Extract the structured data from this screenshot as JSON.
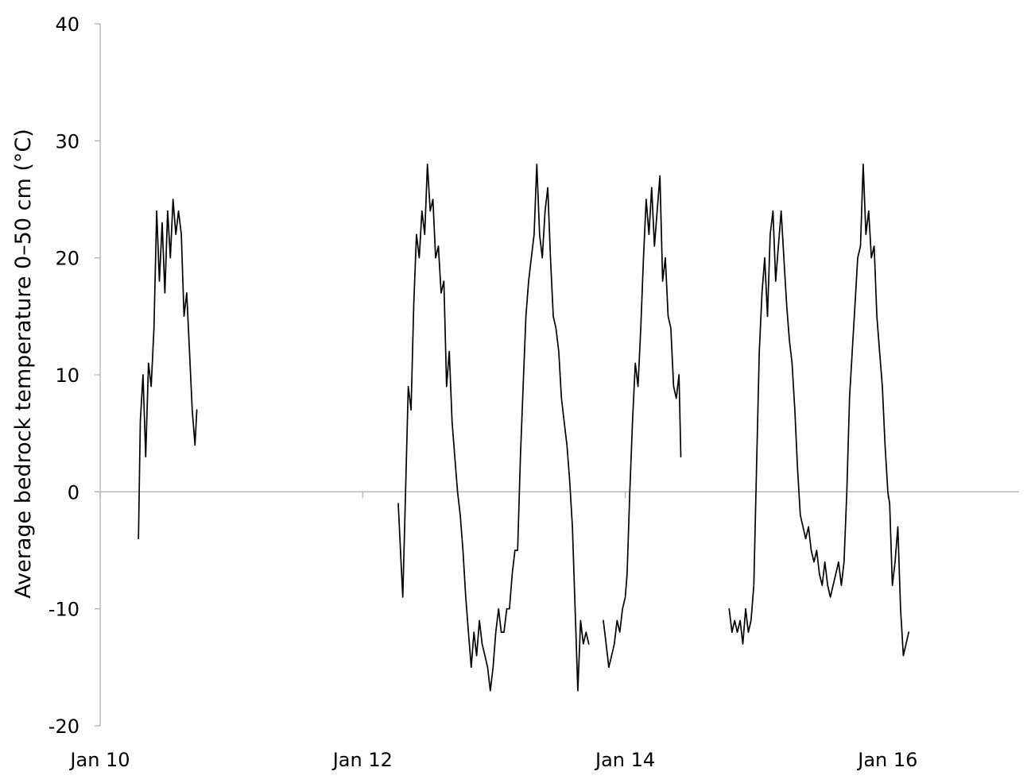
{
  "chart_data": {
    "type": "line",
    "title": "",
    "xlabel": "",
    "ylabel": "Average bedrock temperature 0–50 cm (°C)",
    "ylim": [
      -20,
      40
    ],
    "xlim": [
      "Jan 10",
      "Jan 17"
    ],
    "y_ticks": [
      "-20",
      "-10",
      "0",
      "10",
      "20",
      "30",
      "40"
    ],
    "x_ticks": [
      "Jan 10",
      "Jan 12",
      "Jan 14",
      "Jan 16"
    ],
    "grid": false,
    "legend": "none",
    "line_color": "#000000",
    "series": [
      {
        "segments": [
          [
            [
              "Jan 10 07:00",
              -4
            ],
            [
              "Jan 10 07:20",
              6
            ],
            [
              "Jan 10 07:50",
              10
            ],
            [
              "Jan 10 08:20",
              3
            ],
            [
              "Jan 10 08:50",
              11
            ],
            [
              "Jan 10 09:20",
              9
            ],
            [
              "Jan 10 09:50",
              14
            ],
            [
              "Jan 10 10:20",
              24
            ],
            [
              "Jan 10 10:50",
              18
            ],
            [
              "Jan 10 11:20",
              23
            ],
            [
              "Jan 10 11:50",
              17
            ],
            [
              "Jan 10 12:20",
              24
            ],
            [
              "Jan 10 12:50",
              20
            ],
            [
              "Jan 10 13:20",
              25
            ],
            [
              "Jan 10 13:50",
              22
            ],
            [
              "Jan 10 14:20",
              24
            ],
            [
              "Jan 10 14:50",
              22
            ],
            [
              "Jan 10 15:20",
              15
            ],
            [
              "Jan 10 15:50",
              17
            ],
            [
              "Jan 10 16:20",
              12
            ],
            [
              "Jan 10 16:50",
              7
            ],
            [
              "Jan 10 17:20",
              4
            ],
            [
              "Jan 10 17:40",
              7
            ]
          ],
          [
            [
              "Jan 12 06:30",
              -1
            ],
            [
              "Jan 12 07:00",
              -6
            ],
            [
              "Jan 12 07:20",
              -9
            ],
            [
              "Jan 12 07:50",
              0
            ],
            [
              "Jan 12 08:20",
              9
            ],
            [
              "Jan 12 08:50",
              7
            ],
            [
              "Jan 12 09:20",
              16
            ],
            [
              "Jan 12 09:50",
              22
            ],
            [
              "Jan 12 10:20",
              20
            ],
            [
              "Jan 12 10:50",
              24
            ],
            [
              "Jan 12 11:20",
              22
            ],
            [
              "Jan 12 11:50",
              28
            ],
            [
              "Jan 12 12:20",
              24
            ],
            [
              "Jan 12 12:50",
              25
            ],
            [
              "Jan 12 13:20",
              20
            ],
            [
              "Jan 12 13:50",
              21
            ],
            [
              "Jan 12 14:20",
              17
            ],
            [
              "Jan 12 14:50",
              18
            ],
            [
              "Jan 12 15:20",
              9
            ],
            [
              "Jan 12 15:50",
              12
            ],
            [
              "Jan 12 16:20",
              6
            ],
            [
              "Jan 12 16:50",
              3
            ],
            [
              "Jan 12 17:20",
              0
            ],
            [
              "Jan 12 17:50",
              -2
            ],
            [
              "Jan 12 18:20",
              -5
            ],
            [
              "Jan 12 18:50",
              -9
            ],
            [
              "Jan 12 19:20",
              -12
            ],
            [
              "Jan 12 19:50",
              -15
            ],
            [
              "Jan 12 20:20",
              -12
            ],
            [
              "Jan 12 20:50",
              -14
            ],
            [
              "Jan 12 21:20",
              -11
            ],
            [
              "Jan 12 21:50",
              -13
            ],
            [
              "Jan 12 22:20",
              -14
            ],
            [
              "Jan 12 22:50",
              -15
            ],
            [
              "Jan 12 23:20",
              -17
            ],
            [
              "Jan 12 23:50",
              -15
            ],
            [
              "Jan 13 00:20",
              -12
            ],
            [
              "Jan 13 00:50",
              -10
            ],
            [
              "Jan 13 01:20",
              -12
            ],
            [
              "Jan 13 01:50",
              -12
            ],
            [
              "Jan 13 02:20",
              -10
            ],
            [
              "Jan 13 02:50",
              -10
            ],
            [
              "Jan 13 03:20",
              -7
            ],
            [
              "Jan 13 03:50",
              -5
            ],
            [
              "Jan 13 04:20",
              -5
            ],
            [
              "Jan 13 04:50",
              3
            ],
            [
              "Jan 13 05:20",
              9
            ],
            [
              "Jan 13 05:50",
              15
            ],
            [
              "Jan 13 06:20",
              18
            ],
            [
              "Jan 13 06:50",
              20
            ],
            [
              "Jan 13 07:20",
              22
            ],
            [
              "Jan 13 07:50",
              28
            ],
            [
              "Jan 13 08:20",
              22
            ],
            [
              "Jan 13 08:50",
              20
            ],
            [
              "Jan 13 09:20",
              24
            ],
            [
              "Jan 13 09:50",
              26
            ],
            [
              "Jan 13 10:20",
              20
            ],
            [
              "Jan 13 10:50",
              15
            ],
            [
              "Jan 13 11:20",
              14
            ],
            [
              "Jan 13 11:50",
              12
            ],
            [
              "Jan 13 12:20",
              8
            ],
            [
              "Jan 13 12:50",
              6
            ],
            [
              "Jan 13 13:20",
              4
            ],
            [
              "Jan 13 13:50",
              1
            ],
            [
              "Jan 13 14:20",
              -3
            ],
            [
              "Jan 13 14:50",
              -10
            ],
            [
              "Jan 13 15:20",
              -17
            ],
            [
              "Jan 13 15:50",
              -11
            ],
            [
              "Jan 13 16:20",
              -13
            ],
            [
              "Jan 13 16:50",
              -12
            ],
            [
              "Jan 13 17:20",
              -13
            ]
          ],
          [
            [
              "Jan 13 20:00",
              -11
            ],
            [
              "Jan 13 20:30",
              -13
            ],
            [
              "Jan 13 21:00",
              -15
            ],
            [
              "Jan 13 21:30",
              -14
            ],
            [
              "Jan 13 22:00",
              -13
            ],
            [
              "Jan 13 22:30",
              -11
            ],
            [
              "Jan 13 23:00",
              -12
            ],
            [
              "Jan 13 23:30",
              -10
            ],
            [
              "Jan 14 00:00",
              -9
            ],
            [
              "Jan 14 00:20",
              -7
            ],
            [
              "Jan 14 00:50",
              0
            ],
            [
              "Jan 14 01:20",
              6
            ],
            [
              "Jan 14 01:50",
              11
            ],
            [
              "Jan 14 02:20",
              9
            ],
            [
              "Jan 14 02:50",
              14
            ],
            [
              "Jan 14 03:20",
              20
            ],
            [
              "Jan 14 03:50",
              25
            ],
            [
              "Jan 14 04:20",
              22
            ],
            [
              "Jan 14 04:50",
              26
            ],
            [
              "Jan 14 05:20",
              21
            ],
            [
              "Jan 14 05:50",
              24
            ],
            [
              "Jan 14 06:20",
              27
            ],
            [
              "Jan 14 06:50",
              18
            ],
            [
              "Jan 14 07:20",
              20
            ],
            [
              "Jan 14 07:50",
              15
            ],
            [
              "Jan 14 08:20",
              14
            ],
            [
              "Jan 14 08:50",
              9
            ],
            [
              "Jan 14 09:20",
              8
            ],
            [
              "Jan 14 09:50",
              10
            ],
            [
              "Jan 14 10:10",
              3
            ]
          ],
          [
            [
              "Jan 14 19:00",
              -10
            ],
            [
              "Jan 14 19:30",
              -12
            ],
            [
              "Jan 14 20:00",
              -11
            ],
            [
              "Jan 14 20:30",
              -12
            ],
            [
              "Jan 14 21:00",
              -11
            ],
            [
              "Jan 14 21:30",
              -13
            ],
            [
              "Jan 14 22:00",
              -10
            ],
            [
              "Jan 14 22:30",
              -12
            ],
            [
              "Jan 14 23:00",
              -11
            ],
            [
              "Jan 14 23:30",
              -8
            ],
            [
              "Jan 15 00:00",
              2
            ],
            [
              "Jan 15 00:30",
              12
            ],
            [
              "Jan 15 01:00",
              17
            ],
            [
              "Jan 15 01:30",
              20
            ],
            [
              "Jan 15 02:00",
              15
            ],
            [
              "Jan 15 02:30",
              22
            ],
            [
              "Jan 15 03:00",
              24
            ],
            [
              "Jan 15 03:30",
              18
            ],
            [
              "Jan 15 04:00",
              21
            ],
            [
              "Jan 15 04:30",
              24
            ],
            [
              "Jan 15 05:00",
              20
            ],
            [
              "Jan 15 05:30",
              16
            ],
            [
              "Jan 15 06:00",
              13
            ],
            [
              "Jan 15 06:30",
              11
            ],
            [
              "Jan 15 07:00",
              7
            ],
            [
              "Jan 15 07:30",
              2
            ],
            [
              "Jan 15 08:00",
              -2
            ],
            [
              "Jan 15 08:30",
              -3
            ],
            [
              "Jan 15 09:00",
              -4
            ],
            [
              "Jan 15 09:30",
              -3
            ],
            [
              "Jan 15 10:00",
              -5
            ],
            [
              "Jan 15 10:30",
              -6
            ],
            [
              "Jan 15 11:00",
              -5
            ],
            [
              "Jan 15 11:30",
              -7
            ],
            [
              "Jan 15 12:00",
              -8
            ],
            [
              "Jan 15 12:30",
              -6
            ],
            [
              "Jan 15 13:00",
              -8
            ],
            [
              "Jan 15 13:30",
              -9
            ],
            [
              "Jan 15 14:00",
              -8
            ],
            [
              "Jan 15 14:30",
              -7
            ],
            [
              "Jan 15 15:00",
              -6
            ],
            [
              "Jan 15 15:30",
              -8
            ],
            [
              "Jan 15 16:00",
              -6
            ],
            [
              "Jan 15 16:30",
              0
            ],
            [
              "Jan 15 17:00",
              8
            ],
            [
              "Jan 15 17:30",
              12
            ],
            [
              "Jan 15 18:00",
              16
            ],
            [
              "Jan 15 18:30",
              20
            ],
            [
              "Jan 15 19:00",
              21
            ],
            [
              "Jan 15 19:30",
              28
            ],
            [
              "Jan 15 20:00",
              22
            ],
            [
              "Jan 15 20:30",
              24
            ],
            [
              "Jan 15 21:00",
              20
            ],
            [
              "Jan 15 21:30",
              21
            ],
            [
              "Jan 15 22:00",
              15
            ],
            [
              "Jan 15 22:30",
              12
            ],
            [
              "Jan 15 23:00",
              9
            ],
            [
              "Jan 15 23:30",
              4
            ],
            [
              "Jan 16 00:00",
              0
            ],
            [
              "Jan 16 00:20",
              -1
            ],
            [
              "Jan 16 00:50",
              -8
            ],
            [
              "Jan 16 01:20",
              -6
            ],
            [
              "Jan 16 01:50",
              -3
            ],
            [
              "Jan 16 02:20",
              -10
            ],
            [
              "Jan 16 02:50",
              -14
            ],
            [
              "Jan 16 03:20",
              -13
            ],
            [
              "Jan 16 03:50",
              -12
            ]
          ]
        ]
      }
    ]
  }
}
